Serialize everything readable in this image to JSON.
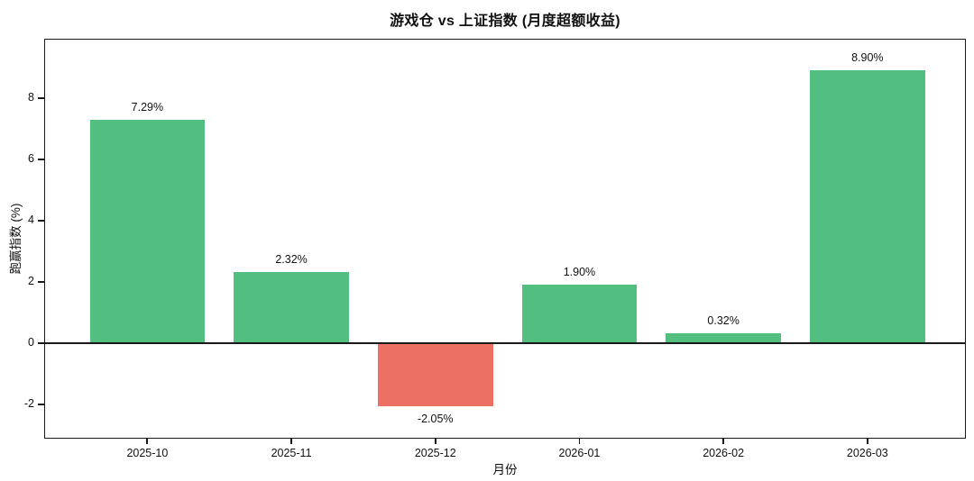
{
  "chart_data": {
    "type": "bar",
    "title": "游戏仓 vs 上证指数 (月度超额收益)",
    "xlabel": "月份",
    "ylabel": "跑赢指数 (%)",
    "categories": [
      "2025-10",
      "2025-11",
      "2025-12",
      "2026-01",
      "2026-02",
      "2026-03"
    ],
    "values": [
      7.29,
      2.32,
      -2.05,
      1.9,
      0.32,
      8.9
    ],
    "value_labels": [
      "7.29%",
      "2.32%",
      "-2.05%",
      "1.90%",
      "0.32%",
      "8.90%"
    ],
    "yticks": [
      -2,
      0,
      2,
      4,
      6,
      8
    ],
    "ytick_labels": [
      "-2",
      "0",
      "2",
      "4",
      "6",
      "8"
    ],
    "ylim": [
      -3.15,
      9.91
    ],
    "xlim": [
      -0.71,
      5.69
    ],
    "bar_width": 0.8,
    "grid": false,
    "legend": "none",
    "zero_line": true,
    "colors": {
      "positive": "#52be80",
      "negative": "#ec7063",
      "axis": "#1a1a1a",
      "text": "#111111",
      "background": "#ffffff"
    }
  }
}
